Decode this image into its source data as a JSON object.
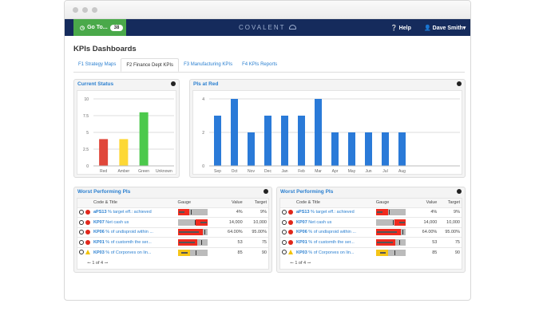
{
  "navbar": {
    "goto_label": "Go To...",
    "goto_count": "38",
    "logo": "COVALENT",
    "help": "Help",
    "user": "Dave Smith"
  },
  "page_title": "KPIs Dashboards",
  "tabs": [
    {
      "label": "F1 Strategy Maps"
    },
    {
      "label": "F2 Finance Dept KPIs",
      "active": true
    },
    {
      "label": "F3 Manufacturing KPIs"
    },
    {
      "label": "F4 KPIs Reports"
    }
  ],
  "colors": {
    "navbar": "#152b5c",
    "goto": "#4aa94a",
    "link": "#2a7fd0",
    "red": "#e53b2c",
    "amber": "#fdd835",
    "green": "#4cc94c",
    "blue": "#2a7ad8"
  },
  "chart_data": [
    {
      "type": "bar",
      "title": "Current Status",
      "categories": [
        "Red",
        "Amber",
        "Green",
        "Unknown"
      ],
      "values": [
        4,
        4,
        8,
        0
      ],
      "colors": [
        "#e0473a",
        "#fdd835",
        "#4cc94c",
        "#999999"
      ],
      "ylim": [
        0,
        10
      ],
      "yticks": [
        0,
        2.5,
        5,
        7.5,
        10
      ],
      "ytick_labels": [
        "0",
        "2.5",
        "5",
        "7.5",
        "10"
      ],
      "grid": true
    },
    {
      "type": "bar",
      "title": "PIs at Red",
      "categories": [
        "Sep",
        "Oct",
        "Nov",
        "Dec",
        "Jan",
        "Feb",
        "Mar",
        "Apr",
        "May",
        "Jun",
        "Jul",
        "Aug"
      ],
      "values": [
        3,
        4,
        2,
        3,
        3,
        3,
        4,
        2,
        2,
        2,
        2,
        2
      ],
      "color": "#2a7ad8",
      "ylim": [
        0,
        4
      ],
      "yticks": [
        0,
        2,
        4
      ],
      "ytick_labels": [
        "0",
        "2",
        "4"
      ],
      "grid": true
    }
  ],
  "worst_panels": [
    {
      "title": "Worst Performing PIs",
      "pager": "1 of 4"
    },
    {
      "title": "Worst Performing PIs",
      "pager": "1 of 4"
    }
  ],
  "table": {
    "headers": [
      "Code & Title",
      "Gauge",
      "Value",
      "Target"
    ],
    "rows": [
      {
        "code": "aPS13",
        "title": "% target eff.: achieved",
        "status": "red",
        "value": "4%",
        "target": "9%",
        "gauge": {
          "fill_from": 0,
          "fill_to": 0.4,
          "bar_from": 0,
          "bar_to": 0.2,
          "marker": 0.45
        }
      },
      {
        "code": "KP07",
        "title": "Net cash us",
        "status": "red",
        "value": "14,000",
        "target": "10,000",
        "gauge": {
          "fill_from": 0.62,
          "fill_to": 1,
          "bar_from": 0.75,
          "bar_to": 0.95,
          "marker": 0.58
        }
      },
      {
        "code": "KP06",
        "title": "% of undisproid within ...",
        "status": "red",
        "value": "64.00%",
        "target": "95.00%",
        "gauge": {
          "fill_from": 0,
          "fill_to": 0.85,
          "bar_from": 0,
          "bar_to": 0.68,
          "marker": 0.9
        }
      },
      {
        "code": "KP01",
        "title": "% of customth the ser...",
        "status": "red",
        "value": "53",
        "target": "75",
        "gauge": {
          "fill_from": 0,
          "fill_to": 0.66,
          "bar_from": 0,
          "bar_to": 0.55,
          "marker": 0.8
        }
      },
      {
        "code": "KP03",
        "title": "% of Corporves on lin...",
        "status": "amber",
        "value": "85",
        "target": "90",
        "gauge": {
          "fill_from": 0,
          "fill_to": 0.42,
          "bar_from": 0.1,
          "bar_to": 0.3,
          "marker": 0.62
        }
      }
    ]
  }
}
